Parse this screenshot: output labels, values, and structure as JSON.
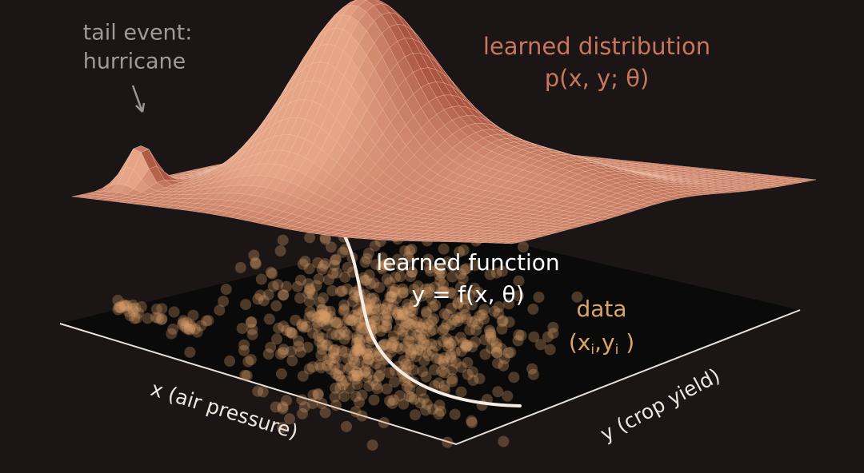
{
  "annotations": {
    "tail_event": [
      "tail event:",
      "hurricane"
    ]
  },
  "distribution": {
    "label": "learned distribution",
    "formula": "p(x, y; θ)"
  },
  "function": {
    "label": "learned function",
    "formula": "y = f(x, θ)"
  },
  "data": {
    "label": "data",
    "notation": [
      "(x",
      "i",
      ",y",
      "i",
      " )"
    ]
  },
  "axes": {
    "x": "x (air pressure)",
    "y": "y (crop yield)"
  }
}
